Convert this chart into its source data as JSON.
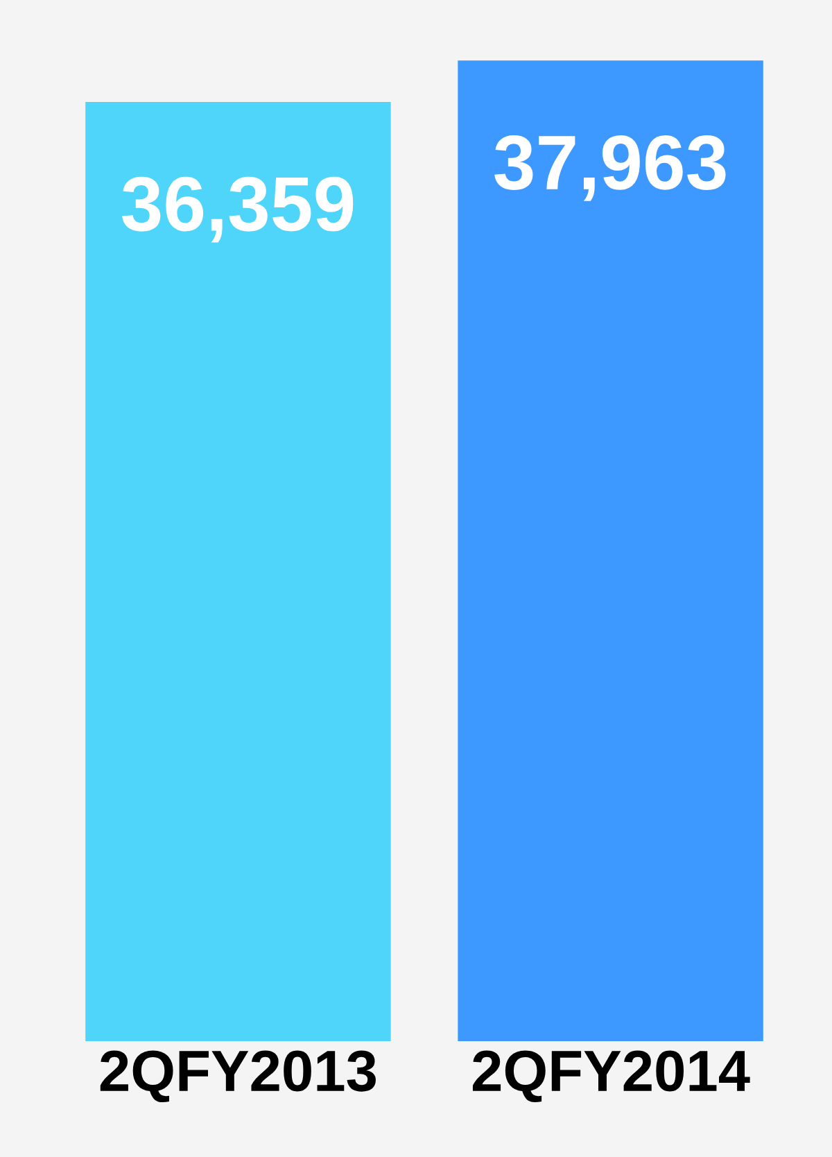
{
  "chart_data": {
    "type": "bar",
    "categories": [
      "2QFY2013",
      "2QFY2014"
    ],
    "values": [
      36359,
      37963
    ],
    "colors": [
      "#4fd4fa",
      "#3d98ff"
    ],
    "value_labels": [
      "36,359",
      "37,963"
    ],
    "grid": false,
    "legend": false
  }
}
